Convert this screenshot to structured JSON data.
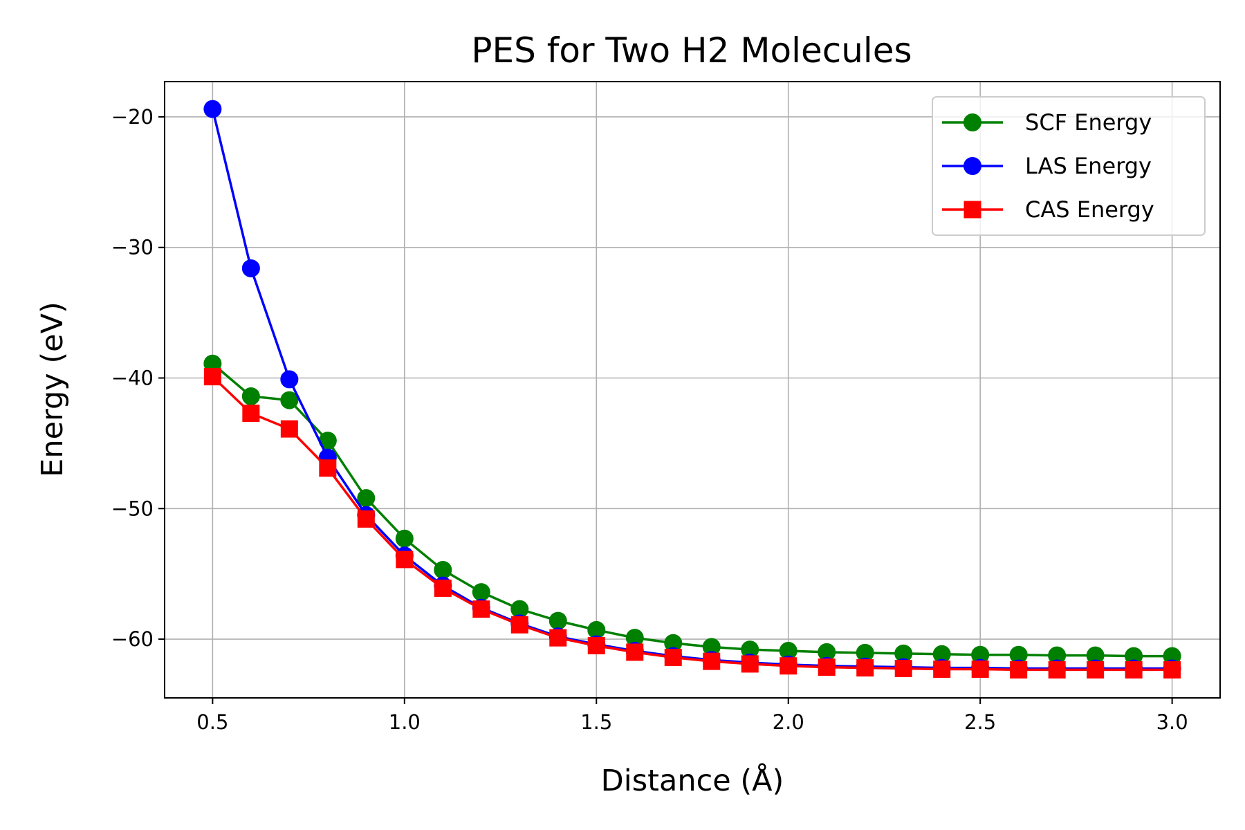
{
  "chart_data": {
    "type": "line",
    "title": "PES for Two H2 Molecules",
    "xlabel": "Distance (Å)",
    "ylabel": "Energy (eV)",
    "xlim": [
      0.375,
      3.125
    ],
    "ylim": [
      -64.5,
      -17.3
    ],
    "xticks": [
      0.5,
      1.0,
      1.5,
      2.0,
      2.5,
      3.0
    ],
    "xtick_labels": [
      "0.5",
      "1.0",
      "1.5",
      "2.0",
      "2.5",
      "3.0"
    ],
    "yticks": [
      -20,
      -30,
      -40,
      -50,
      -60
    ],
    "ytick_labels": [
      "−20",
      "−30",
      "−40",
      "−50",
      "−60"
    ],
    "grid": true,
    "legend_position": "top-right",
    "x": [
      0.5,
      0.6,
      0.7,
      0.8,
      0.9,
      1.0,
      1.1,
      1.2,
      1.3,
      1.4,
      1.5,
      1.6,
      1.7,
      1.8,
      1.9,
      2.0,
      2.1,
      2.2,
      2.3,
      2.4,
      2.5,
      2.6,
      2.7,
      2.8,
      2.9,
      3.0
    ],
    "series": [
      {
        "name": "SCF Energy",
        "color": "#008000",
        "marker": "circle",
        "values": [
          -38.9,
          -41.4,
          -41.7,
          -44.8,
          -49.2,
          -52.3,
          -54.7,
          -56.4,
          -57.7,
          -58.6,
          -59.3,
          -59.9,
          -60.3,
          -60.6,
          -60.8,
          -60.9,
          -61.0,
          -61.05,
          -61.1,
          -61.15,
          -61.2,
          -61.2,
          -61.25,
          -61.25,
          -61.3,
          -61.3
        ]
      },
      {
        "name": "LAS Energy",
        "color": "#0000ff",
        "marker": "circle",
        "values": [
          -19.4,
          -31.6,
          -40.1,
          -46.1,
          -50.5,
          -53.6,
          -55.9,
          -57.6,
          -58.8,
          -59.8,
          -60.4,
          -60.9,
          -61.3,
          -61.6,
          -61.8,
          -61.95,
          -62.05,
          -62.1,
          -62.15,
          -62.2,
          -62.2,
          -62.25,
          -62.25,
          -62.25,
          -62.25,
          -62.25
        ]
      },
      {
        "name": "CAS Energy",
        "color": "#ff0000",
        "marker": "square",
        "values": [
          -39.9,
          -42.7,
          -43.9,
          -46.9,
          -50.8,
          -53.9,
          -56.1,
          -57.7,
          -58.9,
          -59.9,
          -60.5,
          -61.0,
          -61.4,
          -61.7,
          -61.9,
          -62.05,
          -62.15,
          -62.2,
          -62.25,
          -62.3,
          -62.3,
          -62.35,
          -62.35,
          -62.35,
          -62.35,
          -62.35
        ]
      }
    ]
  }
}
